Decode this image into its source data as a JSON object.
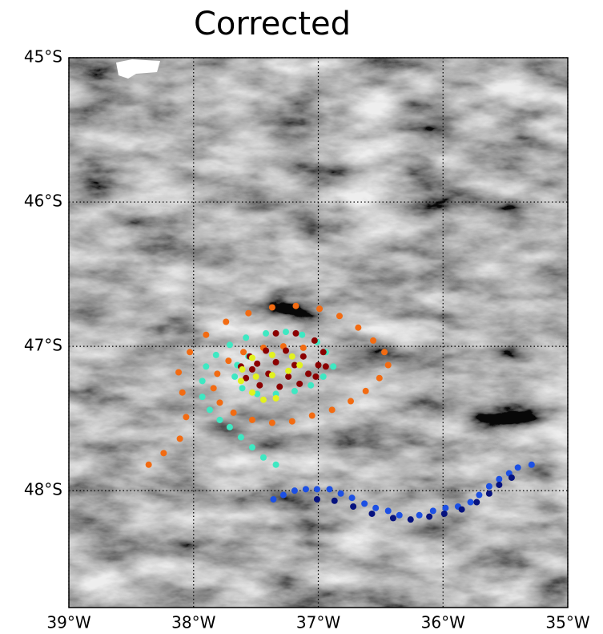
{
  "chart_data": {
    "type": "scatter",
    "title": "Corrected",
    "xlim": [
      -39,
      -35
    ],
    "ylim": [
      -48.81,
      -45
    ],
    "xticks": [
      {
        "value": -39,
        "label": "39°W"
      },
      {
        "value": -38,
        "label": "38°W"
      },
      {
        "value": -37,
        "label": "37°W"
      },
      {
        "value": -36,
        "label": "36°W"
      },
      {
        "value": -35,
        "label": "35°W"
      }
    ],
    "yticks": [
      {
        "value": -45,
        "label": "45°S"
      },
      {
        "value": -46,
        "label": "46°S"
      },
      {
        "value": -47,
        "label": "47°S"
      },
      {
        "value": -48,
        "label": "48°S"
      }
    ],
    "grid": true,
    "series": [
      {
        "color": "#f26b12",
        "x": [
          -38.36,
          -38.24,
          -38.11,
          -38.06,
          -38.09,
          -38.12,
          -38.03,
          -37.9,
          -37.74,
          -37.56,
          -37.37,
          -37.18,
          -36.99,
          -36.83,
          -36.68,
          -36.56,
          -36.47,
          -36.44,
          -36.51,
          -36.62,
          -36.74,
          -36.89,
          -37.05,
          -37.21,
          -37.37,
          -37.53,
          -37.68,
          -37.79,
          -37.84,
          -37.81,
          -37.72,
          -37.6,
          -37.44,
          -37.28,
          -37.12
        ],
        "y": [
          -47.82,
          -47.74,
          -47.64,
          -47.49,
          -47.32,
          -47.18,
          -47.04,
          -46.92,
          -46.83,
          -46.77,
          -46.73,
          -46.72,
          -46.74,
          -46.79,
          -46.87,
          -46.96,
          -47.04,
          -47.13,
          -47.22,
          -47.31,
          -47.38,
          -47.44,
          -47.48,
          -47.52,
          -47.53,
          -47.51,
          -47.46,
          -47.39,
          -47.29,
          -47.19,
          -47.1,
          -47.04,
          -47.01,
          -47.0,
          -47.01
        ]
      },
      {
        "color": "#3ee8c2",
        "x": [
          -37.34,
          -37.44,
          -37.53,
          -37.62,
          -37.71,
          -37.79,
          -37.87,
          -37.93,
          -37.93,
          -37.9,
          -37.82,
          -37.71,
          -37.58,
          -37.42,
          -37.26,
          -37.13,
          -37.01,
          -36.94,
          -36.88,
          -36.96,
          -37.06,
          -37.19,
          -37.34,
          -37.49,
          -37.61,
          -37.67,
          -37.65,
          -37.56
        ],
        "y": [
          -47.82,
          -47.77,
          -47.7,
          -47.63,
          -47.56,
          -47.51,
          -47.44,
          -47.35,
          -47.24,
          -47.14,
          -47.06,
          -46.99,
          -46.94,
          -46.91,
          -46.9,
          -46.92,
          -46.97,
          -47.04,
          -47.14,
          -47.21,
          -47.27,
          -47.31,
          -47.33,
          -47.33,
          -47.29,
          -47.21,
          -47.13,
          -47.07
        ]
      },
      {
        "color": "#8b0000",
        "x": [
          -37.34,
          -37.18,
          -37.03,
          -36.96,
          -36.94,
          -37.02,
          -37.15,
          -37.31,
          -37.47,
          -37.58,
          -37.62,
          -37.55,
          -37.42,
          -37.26,
          -37.12,
          -37.0,
          -37.08,
          -37.24,
          -37.4,
          -37.53,
          -37.49,
          -37.34,
          -37.19
        ],
        "y": [
          -46.91,
          -46.91,
          -46.96,
          -47.04,
          -47.14,
          -47.21,
          -47.26,
          -47.28,
          -47.27,
          -47.22,
          -47.14,
          -47.07,
          -47.03,
          -47.03,
          -47.07,
          -47.13,
          -47.19,
          -47.21,
          -47.19,
          -47.16,
          -47.12,
          -47.11,
          -47.13
        ]
      },
      {
        "color": "#e2f21e",
        "x": [
          -37.44,
          -37.53,
          -37.62,
          -37.61,
          -37.53,
          -37.37,
          -37.21,
          -37.15,
          -37.24,
          -37.37,
          -37.5,
          -37.34
        ],
        "y": [
          -47.37,
          -47.32,
          -47.24,
          -47.16,
          -47.08,
          -47.06,
          -47.07,
          -47.13,
          -47.17,
          -47.2,
          -47.21,
          -47.36
        ]
      },
      {
        "color": "#1c50e4",
        "x": [
          -37.36,
          -37.28,
          -37.19,
          -37.1,
          -37.01,
          -36.91,
          -36.82,
          -36.73,
          -36.63,
          -36.54,
          -36.44,
          -36.35,
          -36.19,
          -36.08,
          -35.98,
          -35.88,
          -35.78,
          -35.71,
          -35.63,
          -35.55,
          -35.47,
          -35.4,
          -35.29
        ],
        "y": [
          -48.06,
          -48.03,
          -48.0,
          -47.99,
          -47.99,
          -47.99,
          -48.02,
          -48.05,
          -48.09,
          -48.12,
          -48.14,
          -48.17,
          -48.17,
          -48.14,
          -48.12,
          -48.11,
          -48.08,
          -48.03,
          -47.97,
          -47.92,
          -47.88,
          -47.84,
          -47.82
        ]
      },
      {
        "color": "#06127e",
        "x": [
          -37.01,
          -36.87,
          -36.72,
          -36.57,
          -36.4,
          -36.26,
          -36.11,
          -35.99,
          -35.85,
          -35.73,
          -35.63,
          -35.55,
          -35.45
        ],
        "y": [
          -48.06,
          -48.07,
          -48.11,
          -48.16,
          -48.19,
          -48.2,
          -48.18,
          -48.16,
          -48.13,
          -48.08,
          -48.02,
          -47.96,
          -47.91
        ]
      }
    ]
  }
}
